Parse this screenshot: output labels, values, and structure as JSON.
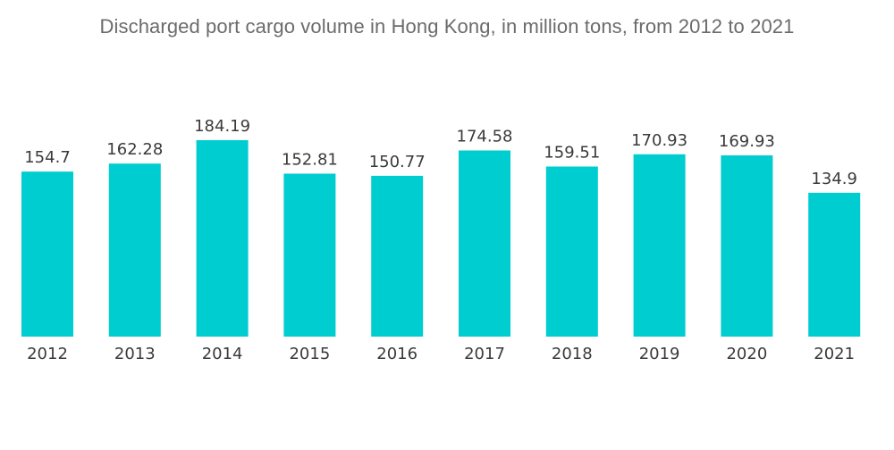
{
  "chart_data": {
    "type": "bar",
    "title": "Discharged port cargo volume in Hong Kong, in million tons, from 2012 to 2021",
    "xlabel": "",
    "ylabel": "",
    "categories": [
      "2012",
      "2013",
      "2014",
      "2015",
      "2016",
      "2017",
      "2018",
      "2019",
      "2020",
      "2021"
    ],
    "values": [
      154.7,
      162.28,
      184.19,
      152.81,
      150.77,
      174.58,
      159.51,
      170.93,
      169.93,
      134.9
    ],
    "value_labels": [
      "154.7",
      "162.28",
      "184.19",
      "152.81",
      "150.77",
      "174.58",
      "159.51",
      "170.93",
      "169.93",
      "134.9"
    ],
    "ylim": [
      0,
      184.19
    ],
    "grid": false,
    "legend": "none",
    "bar_color": "#00cdd0",
    "text_color": "#3a3a3a",
    "title_color": "#6b6b6b"
  }
}
